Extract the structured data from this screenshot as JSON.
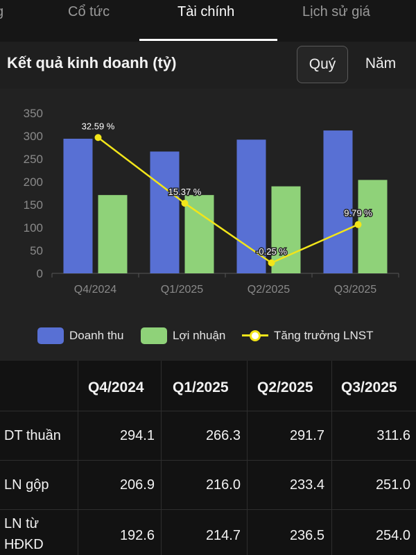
{
  "tabs": [
    {
      "label": "g"
    },
    {
      "label": "Cổ tức"
    },
    {
      "label": "Tài chính",
      "active": true
    },
    {
      "label": "Lịch sử giá"
    }
  ],
  "section": {
    "title": "Kết quả kinh doanh (tỷ)",
    "period_options": [
      "Quý",
      "Năm"
    ],
    "selected_period": "Quý"
  },
  "chart_data": {
    "type": "bar",
    "categories": [
      "Q4/2024",
      "Q1/2025",
      "Q2/2025",
      "Q3/2025"
    ],
    "series": [
      {
        "name": "Doanh thu",
        "type": "bar",
        "color": "#5870d4",
        "values": [
          294,
          266,
          292,
          312
        ]
      },
      {
        "name": "Lợi nhuận",
        "type": "bar",
        "color": "#8fd279",
        "values": [
          171,
          171,
          190,
          204
        ]
      },
      {
        "name": "Tăng trưởng LNST",
        "type": "line",
        "color": "#f2e51a",
        "values": [
          32.59,
          15.37,
          -0.25,
          9.79
        ],
        "labels": [
          "32.59 %",
          "15.37 %",
          "-0.25 %",
          "9.79 %"
        ]
      }
    ],
    "yticks": [
      "0",
      "50",
      "100",
      "150",
      "200",
      "250",
      "300",
      "350"
    ],
    "ylim": [
      0,
      350
    ],
    "legend_position": "bottom"
  },
  "table": {
    "headers": [
      "",
      "Q4/2024",
      "Q1/2025",
      "Q2/2025",
      "Q3/2025"
    ],
    "rows": [
      {
        "label": "DT thuần",
        "values": [
          "294.1",
          "266.3",
          "291.7",
          "311.6"
        ]
      },
      {
        "label": "LN gộp",
        "values": [
          "206.9",
          "216.0",
          "233.4",
          "251.0"
        ]
      },
      {
        "label": "LN từ HĐKD",
        "label_lines": [
          "LN từ",
          "HĐKD"
        ],
        "values": [
          "192.6",
          "214.7",
          "236.5",
          "254.0"
        ]
      }
    ]
  }
}
